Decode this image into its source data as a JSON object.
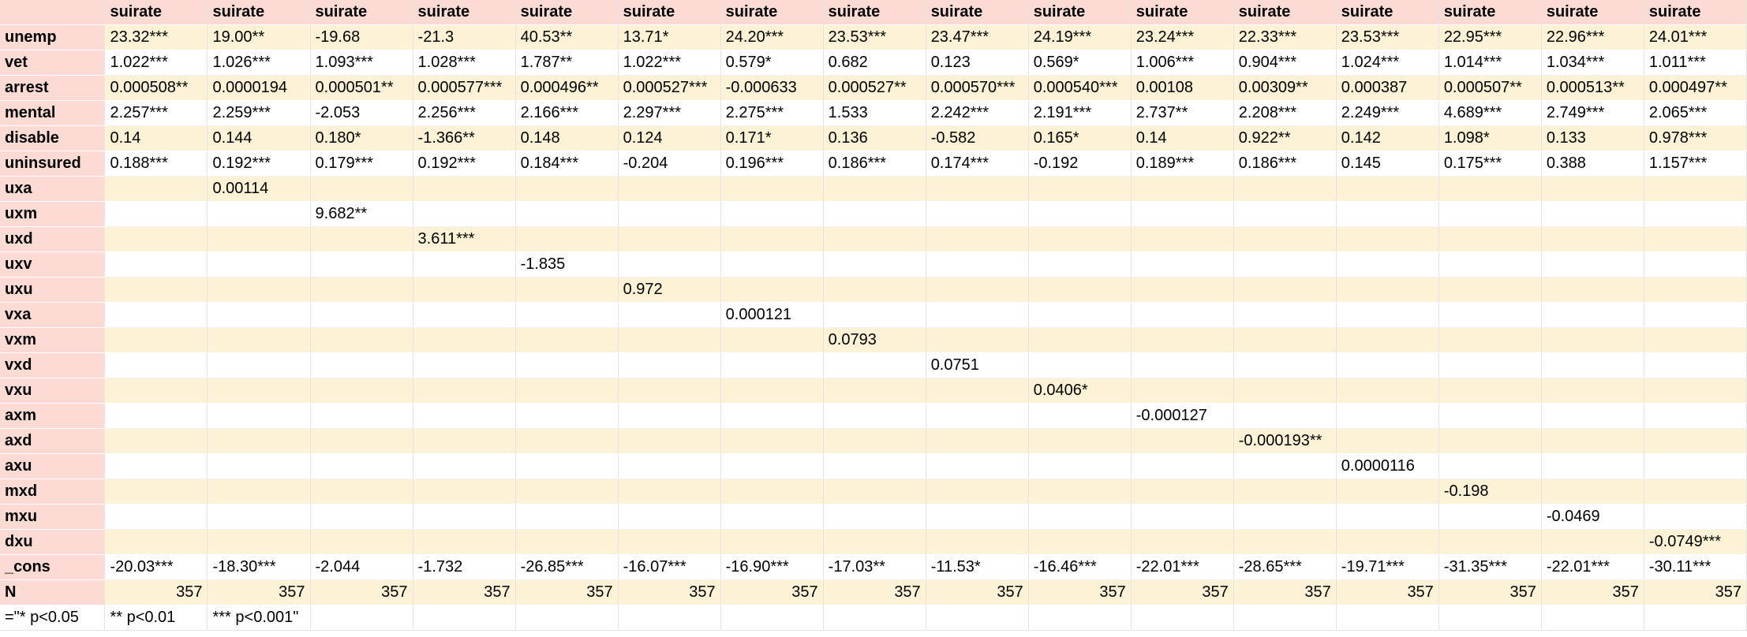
{
  "table": {
    "corner": "",
    "columns": [
      "suirate",
      "suirate",
      "suirate",
      "suirate",
      "suirate",
      "suirate",
      "suirate",
      "suirate",
      "suirate",
      "suirate",
      "suirate",
      "suirate",
      "suirate",
      "suirate",
      "suirate",
      "suirate"
    ],
    "rows": [
      {
        "label": "unemp",
        "cells": [
          "23.32***",
          "19.00**",
          "-19.68",
          "-21.3",
          "40.53**",
          "13.71*",
          "24.20***",
          "23.53***",
          "23.47***",
          "24.19***",
          "23.24***",
          "22.33***",
          "23.53***",
          "22.95***",
          "22.96***",
          "24.01***"
        ]
      },
      {
        "label": "vet",
        "cells": [
          "1.022***",
          "1.026***",
          "1.093***",
          "1.028***",
          "1.787**",
          "1.022***",
          "0.579*",
          "0.682",
          "0.123",
          "0.569*",
          "1.006***",
          "0.904***",
          "1.024***",
          "1.014***",
          "1.034***",
          "1.011***"
        ]
      },
      {
        "label": "arrest",
        "cells": [
          "0.000508**",
          "0.0000194",
          "0.000501**",
          "0.000577***",
          "0.000496**",
          "0.000527***",
          "-0.000633",
          "0.000527**",
          "0.000570***",
          "0.000540***",
          "0.00108",
          "0.00309**",
          "0.000387",
          "0.000507**",
          "0.000513**",
          "0.000497**"
        ]
      },
      {
        "label": "mental",
        "cells": [
          "2.257***",
          "2.259***",
          "-2.053",
          "2.256***",
          "2.166***",
          "2.297***",
          "2.275***",
          "1.533",
          "2.242***",
          "2.191***",
          "2.737**",
          "2.208***",
          "2.249***",
          "4.689***",
          "2.749***",
          "2.065***"
        ]
      },
      {
        "label": "disable",
        "cells": [
          "0.14",
          "0.144",
          "0.180*",
          "-1.366**",
          "0.148",
          "0.124",
          "0.171*",
          "0.136",
          "-0.582",
          "0.165*",
          "0.14",
          "0.922**",
          "0.142",
          "1.098*",
          "0.133",
          "0.978***"
        ]
      },
      {
        "label": "uninsured",
        "cells": [
          "0.188***",
          "0.192***",
          "0.179***",
          "0.192***",
          "0.184***",
          "-0.204",
          "0.196***",
          "0.186***",
          "0.174***",
          "-0.192",
          "0.189***",
          "0.186***",
          "0.145",
          "0.175***",
          "0.388",
          "1.157***"
        ]
      },
      {
        "label": "uxa",
        "cells": [
          "",
          "0.00114",
          "",
          "",
          "",
          "",
          "",
          "",
          "",
          "",
          "",
          "",
          "",
          "",
          "",
          ""
        ]
      },
      {
        "label": "uxm",
        "cells": [
          "",
          "",
          "9.682**",
          "",
          "",
          "",
          "",
          "",
          "",
          "",
          "",
          "",
          "",
          "",
          "",
          ""
        ]
      },
      {
        "label": "uxd",
        "cells": [
          "",
          "",
          "",
          "3.611***",
          "",
          "",
          "",
          "",
          "",
          "",
          "",
          "",
          "",
          "",
          "",
          ""
        ]
      },
      {
        "label": "uxv",
        "cells": [
          "",
          "",
          "",
          "",
          "-1.835",
          "",
          "",
          "",
          "",
          "",
          "",
          "",
          "",
          "",
          "",
          ""
        ]
      },
      {
        "label": "uxu",
        "cells": [
          "",
          "",
          "",
          "",
          "",
          "0.972",
          "",
          "",
          "",
          "",
          "",
          "",
          "",
          "",
          "",
          ""
        ]
      },
      {
        "label": "vxa",
        "cells": [
          "",
          "",
          "",
          "",
          "",
          "",
          "0.000121",
          "",
          "",
          "",
          "",
          "",
          "",
          "",
          "",
          ""
        ]
      },
      {
        "label": "vxm",
        "cells": [
          "",
          "",
          "",
          "",
          "",
          "",
          "",
          "0.0793",
          "",
          "",
          "",
          "",
          "",
          "",
          "",
          ""
        ]
      },
      {
        "label": "vxd",
        "cells": [
          "",
          "",
          "",
          "",
          "",
          "",
          "",
          "",
          "0.0751",
          "",
          "",
          "",
          "",
          "",
          "",
          ""
        ]
      },
      {
        "label": "vxu",
        "cells": [
          "",
          "",
          "",
          "",
          "",
          "",
          "",
          "",
          "",
          "0.0406*",
          "",
          "",
          "",
          "",
          "",
          ""
        ]
      },
      {
        "label": "axm",
        "cells": [
          "",
          "",
          "",
          "",
          "",
          "",
          "",
          "",
          "",
          "",
          "-0.000127",
          "",
          "",
          "",
          "",
          ""
        ]
      },
      {
        "label": "axd",
        "cells": [
          "",
          "",
          "",
          "",
          "",
          "",
          "",
          "",
          "",
          "",
          "",
          "-0.000193**",
          "",
          "",
          "",
          ""
        ]
      },
      {
        "label": "axu",
        "cells": [
          "",
          "",
          "",
          "",
          "",
          "",
          "",
          "",
          "",
          "",
          "",
          "",
          "0.0000116",
          "",
          "",
          ""
        ]
      },
      {
        "label": "mxd",
        "cells": [
          "",
          "",
          "",
          "",
          "",
          "",
          "",
          "",
          "",
          "",
          "",
          "",
          "",
          "-0.198",
          "",
          ""
        ]
      },
      {
        "label": "mxu",
        "cells": [
          "",
          "",
          "",
          "",
          "",
          "",
          "",
          "",
          "",
          "",
          "",
          "",
          "",
          "",
          "-0.0469",
          ""
        ]
      },
      {
        "label": "dxu",
        "cells": [
          "",
          "",
          "",
          "",
          "",
          "",
          "",
          "",
          "",
          "",
          "",
          "",
          "",
          "",
          "",
          "-0.0749***"
        ]
      },
      {
        "label": "_cons",
        "cells": [
          "-20.03***",
          "-18.30***",
          "-2.044",
          "-1.732",
          "-26.85***",
          "-16.07***",
          "-16.90***",
          "-17.03**",
          "-11.53*",
          "-16.46***",
          "-22.01***",
          "-28.65***",
          "-19.71***",
          "-31.35***",
          "-22.01***",
          "-30.11***"
        ]
      }
    ],
    "n_row": {
      "label": "N",
      "cells": [
        "357",
        "357",
        "357",
        "357",
        "357",
        "357",
        "357",
        "357",
        "357",
        "357",
        "357",
        "357",
        "357",
        "357",
        "357",
        "357"
      ]
    },
    "notes": [
      "=\"* p<0.05",
      "** p<0.01",
      "*** p<0.001\""
    ]
  }
}
